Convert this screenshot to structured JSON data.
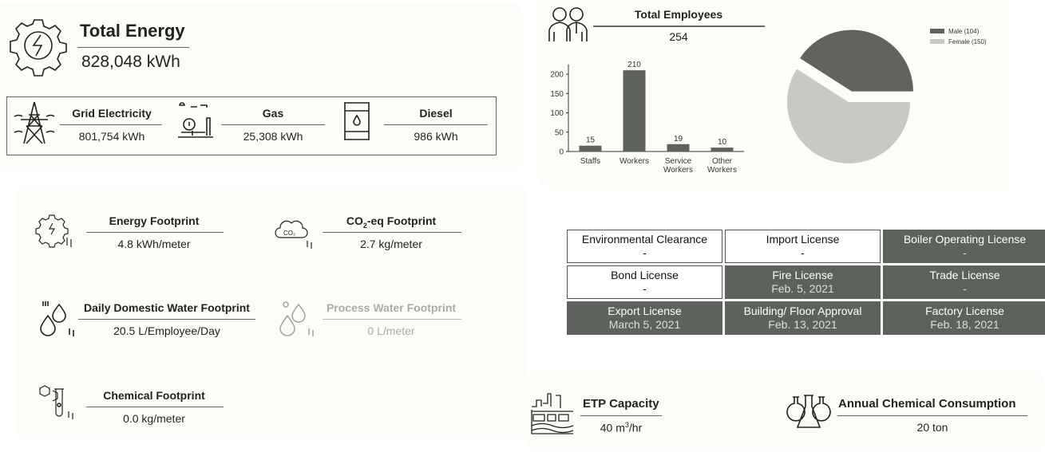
{
  "total_energy": {
    "title": "Total Energy",
    "value": "828,048 kWh",
    "icon": "gear-lightning-icon"
  },
  "energy_sources": [
    {
      "label": "Grid Electricity",
      "value": "801,754 kWh",
      "icon": "power-tower-icon"
    },
    {
      "label": "Gas",
      "value": "25,308 kWh",
      "icon": "gas-plant-icon"
    },
    {
      "label": "Diesel",
      "value": "986 kWh",
      "icon": "oil-barrel-icon"
    }
  ],
  "employees": {
    "title": "Total Employees",
    "value": "254",
    "icon": "people-icon"
  },
  "chart_data": [
    {
      "type": "bar",
      "title": "",
      "categories": [
        "Staffs",
        "Workers",
        "Service Workers",
        "Other Workers"
      ],
      "category_lines": [
        [
          "Staffs"
        ],
        [
          "Workers"
        ],
        [
          "Service",
          "Workers"
        ],
        [
          "Other",
          "Workers"
        ]
      ],
      "values": [
        15,
        210,
        19,
        10
      ],
      "data_labels": [
        "15",
        "210",
        "19",
        "10"
      ],
      "yticks": [
        "0",
        "50",
        "100",
        "150",
        "200"
      ],
      "ytick_values": [
        0,
        50,
        100,
        150,
        200
      ],
      "ylim": [
        0,
        225
      ],
      "xlabel": "",
      "ylabel": "",
      "color": "#5e625d"
    },
    {
      "type": "pie",
      "series": [
        {
          "name": "Male",
          "value": 104,
          "legend": "Male (104)",
          "color": "#61635e"
        },
        {
          "name": "Female",
          "value": 150,
          "legend": "Female (150)",
          "color": "#c8c9c4"
        }
      ],
      "legend_position": "top-right",
      "exploded": "Male"
    }
  ],
  "footprints": [
    {
      "label": "Energy Footprint",
      "value": "4.8 kWh/meter",
      "icon": "gear-footprint-icon"
    },
    {
      "label_main": "CO",
      "label_sub": "2",
      "label_rest": "-eq Footprint",
      "value": "2.7 kg/meter",
      "icon": "co2-cloud-icon",
      "icon_text": "CO₂"
    },
    {
      "label": "Daily Domestic Water Footprint",
      "value": "20.5 L/Employee/Day",
      "icon": "water-drops-icon"
    },
    {
      "label": "Process Water Footprint",
      "value": "0 L/meter",
      "icon": "process-water-icon"
    },
    {
      "label": "Chemical Footprint",
      "value": "0.0 kg/meter",
      "icon": "chemical-footprint-icon"
    }
  ],
  "licenses": [
    {
      "name": "Environmental Clearance",
      "date": "-",
      "obtained": false
    },
    {
      "name": "Import License",
      "date": "-",
      "obtained": false
    },
    {
      "name": "Boiler Operating License",
      "date": "-",
      "obtained": true
    },
    {
      "name": "Bond License",
      "date": "-",
      "obtained": false
    },
    {
      "name": "Fire License",
      "date": "Feb. 5, 2021",
      "obtained": true
    },
    {
      "name": "Trade License",
      "date": "-",
      "obtained": true
    },
    {
      "name": "Export License",
      "date": "March 5, 2021",
      "obtained": true
    },
    {
      "name": "Building/ Floor Approval",
      "date": "Feb. 13, 2021",
      "obtained": true
    },
    {
      "name": "Factory License",
      "date": "Feb. 18, 2021",
      "obtained": true
    }
  ],
  "etp": {
    "title": "ETP Capacity",
    "value_main": "40 m",
    "value_sup": "3",
    "value_rest": "/hr",
    "icon": "factory-icon"
  },
  "chemical": {
    "title": "Annual Chemical Consumption",
    "value": "20 ton",
    "icon": "flasks-icon"
  }
}
